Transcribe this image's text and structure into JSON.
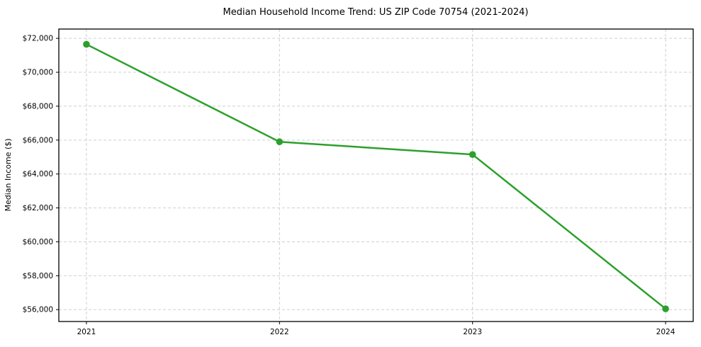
{
  "chart_data": {
    "type": "line",
    "title": "Median Household Income Trend: US ZIP Code 70754 (2021-2024)",
    "xlabel": "",
    "ylabel": "Median Income ($)",
    "x": [
      2021,
      2022,
      2023,
      2024
    ],
    "x_tick_labels": [
      "2021",
      "2022",
      "2023",
      "2024"
    ],
    "series": [
      {
        "name": "Median Household Income",
        "values": [
          71650,
          65900,
          65150,
          56050
        ]
      }
    ],
    "y_ticks": [
      56000,
      58000,
      60000,
      62000,
      64000,
      66000,
      68000,
      70000,
      72000
    ],
    "y_tick_labels": [
      "$56,000",
      "$58,000",
      "$60,000",
      "$62,000",
      "$64,000",
      "$66,000",
      "$68,000",
      "$70,000",
      "$72,000"
    ],
    "xlim": [
      2020.857,
      2024.143
    ],
    "ylim": [
      55300,
      72550
    ],
    "grid": true,
    "grid_style": "dashed",
    "legend_position": "none",
    "colors": {
      "line": "#2ca02c",
      "marker": "#2ca02c",
      "grid": "#cfcfcf",
      "spine": "#000000",
      "background": "#ffffff"
    }
  }
}
